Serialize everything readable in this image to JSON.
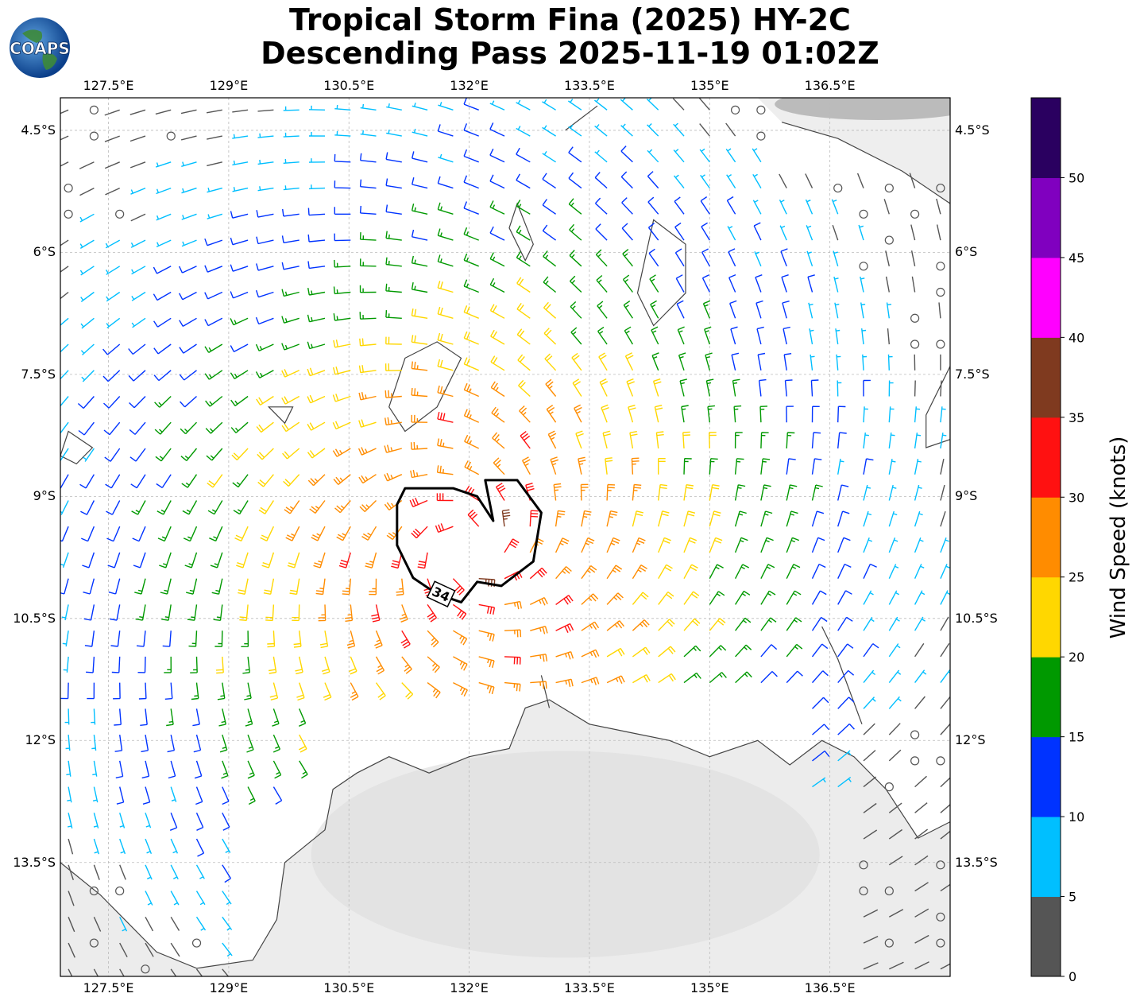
{
  "title": {
    "line1": "Tropical Storm Fina (2025) HY-2C",
    "line2": "Descending Pass 2025-11-19 01:02Z"
  },
  "logo": {
    "text": "COAPS",
    "icon": "globe-icon"
  },
  "map": {
    "lon_range": [
      126.9,
      138.0
    ],
    "lat_range": [
      -14.9,
      -4.1
    ],
    "lon_ticks": [
      "127.5°E",
      "129°E",
      "130.5°E",
      "132°E",
      "133.5°E",
      "135°E",
      "136.5°E"
    ],
    "lon_tick_values": [
      127.5,
      129.0,
      130.5,
      132.0,
      133.5,
      135.0,
      136.5
    ],
    "lat_ticks": [
      "4.5°S",
      "6°S",
      "7.5°S",
      "9°S",
      "10.5°S",
      "12°S",
      "13.5°S"
    ],
    "lat_tick_values": [
      -4.5,
      -6.0,
      -7.5,
      -9.0,
      -10.5,
      -12.0,
      -13.5
    ],
    "gridlines": true,
    "storm_center": {
      "lon": 132.0,
      "lat": -9.6
    },
    "wind_radius_contour_label": "34",
    "wind_radius_contour_kt": 34
  },
  "colorbar": {
    "label": "Wind Speed (knots)",
    "ticks": [
      "0",
      "5",
      "10",
      "15",
      "20",
      "25",
      "30",
      "35",
      "40",
      "45",
      "50"
    ],
    "bins": [
      {
        "min": 0,
        "max": 5,
        "color": "#555555"
      },
      {
        "min": 5,
        "max": 10,
        "color": "#00bfff"
      },
      {
        "min": 10,
        "max": 15,
        "color": "#0033ff"
      },
      {
        "min": 15,
        "max": 20,
        "color": "#009900"
      },
      {
        "min": 20,
        "max": 25,
        "color": "#ffd700"
      },
      {
        "min": 25,
        "max": 30,
        "color": "#ff8c00"
      },
      {
        "min": 30,
        "max": 35,
        "color": "#ff1111"
      },
      {
        "min": 35,
        "max": 40,
        "color": "#7f3a1f"
      },
      {
        "min": 40,
        "max": 45,
        "color": "#ff00ff"
      },
      {
        "min": 45,
        "max": 50,
        "color": "#8000bf"
      },
      {
        "min": 50,
        "max": 55,
        "color": "#2a0060"
      }
    ]
  },
  "colors": {
    "coast": "#444444",
    "grid": "#bbbbbb",
    "contour": "#000000"
  }
}
